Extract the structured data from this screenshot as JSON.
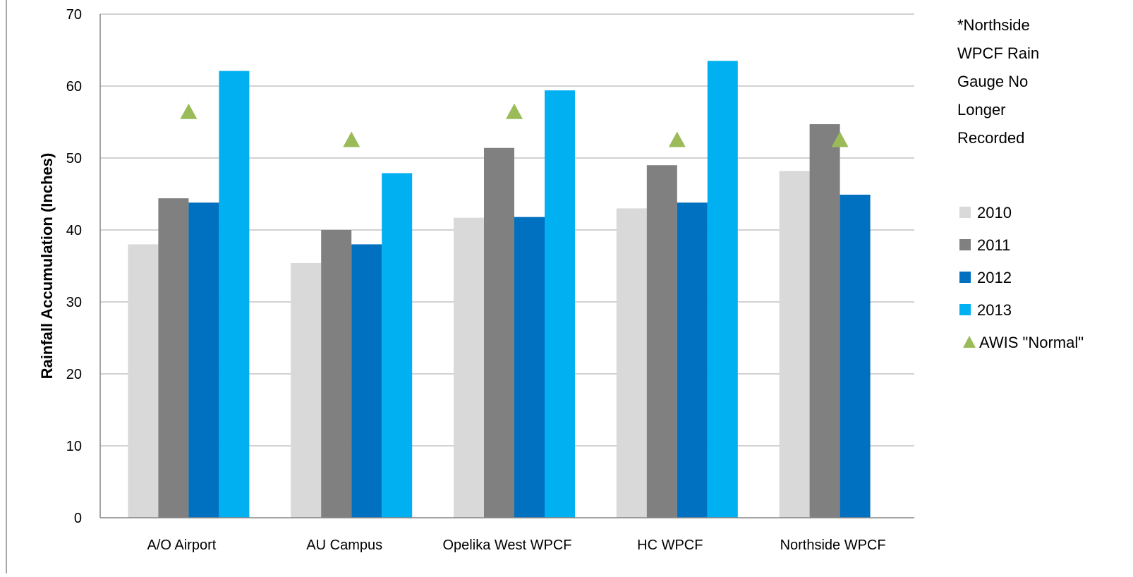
{
  "chart_data": {
    "type": "bar",
    "title": "",
    "xlabel": "",
    "ylabel": "Rainfall Accumulation (Inches)",
    "ylim": [
      0,
      70
    ],
    "yticks": [
      0,
      10,
      20,
      30,
      40,
      50,
      60,
      70
    ],
    "grid": true,
    "legend_position": "right",
    "categories": [
      "A/O Airport",
      "AU Campus",
      "Opelika West WPCF",
      "HC WPCF",
      "Northside WPCF"
    ],
    "series": [
      {
        "name": "2010",
        "color": "#d9d9d9",
        "values": [
          38.0,
          35.4,
          41.7,
          43.0,
          48.2
        ]
      },
      {
        "name": "2011",
        "color": "#808080",
        "values": [
          44.4,
          40.0,
          51.4,
          49.0,
          54.7
        ]
      },
      {
        "name": "2012",
        "color": "#0070c0",
        "values": [
          43.8,
          38.0,
          41.8,
          43.8,
          44.9
        ]
      },
      {
        "name": "2013",
        "color": "#00b0f0",
        "values": [
          62.1,
          47.9,
          59.4,
          63.5,
          null
        ]
      }
    ],
    "markers": {
      "name": "AWIS \"Normal\"",
      "color": "#9bbb59",
      "shape": "triangle",
      "values": [
        56.5,
        52.6,
        56.5,
        52.6,
        52.6
      ]
    },
    "annotation": [
      "*Northside",
      "WPCF Rain",
      "Gauge No",
      "Longer",
      "Recorded"
    ]
  }
}
